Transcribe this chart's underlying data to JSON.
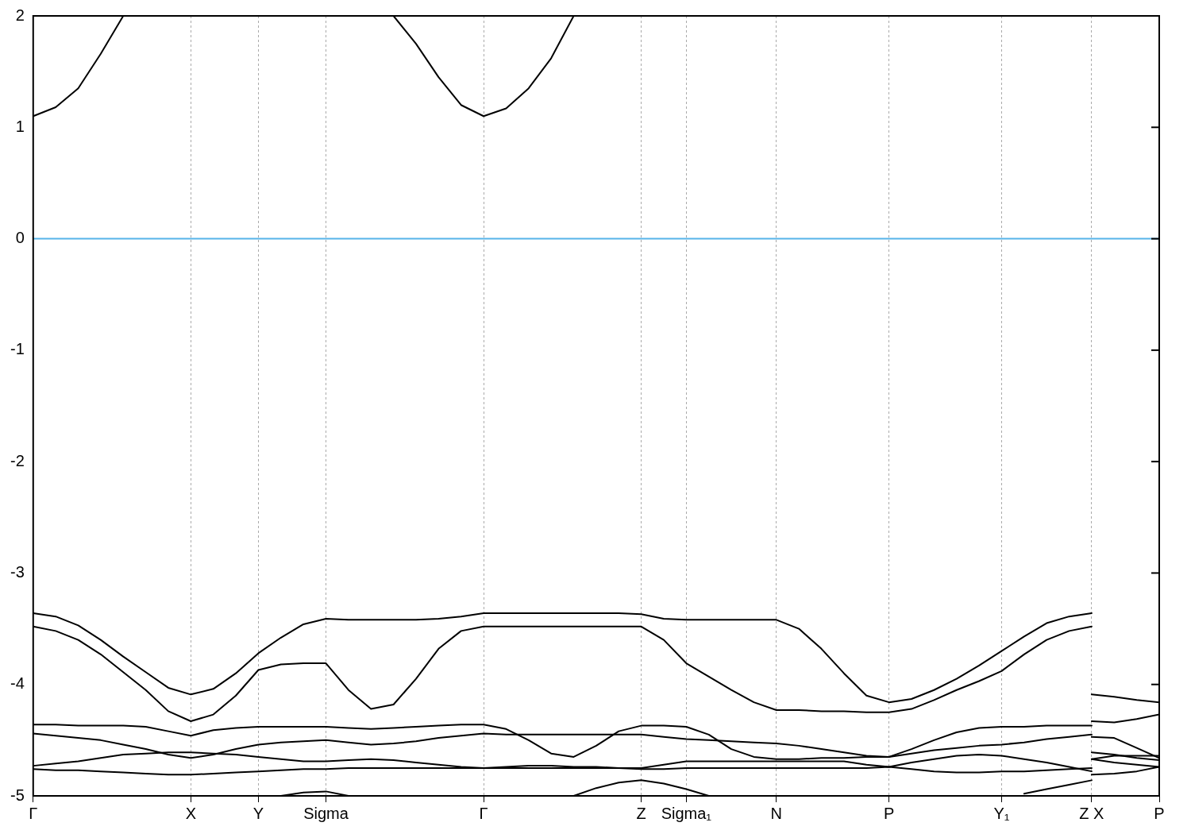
{
  "chart_data": {
    "type": "line",
    "marker": "none",
    "legend": false,
    "grid": "x",
    "categories": [
      "Γ",
      null,
      null,
      null,
      null,
      null,
      null,
      "X",
      null,
      null,
      "Y",
      null,
      null,
      "Sigma",
      null,
      null,
      null,
      null,
      null,
      null,
      "Γ",
      null,
      null,
      null,
      null,
      null,
      null,
      "Z",
      null,
      "Sigma₁",
      null,
      null,
      null,
      "N",
      null,
      null,
      null,
      null,
      "P",
      null,
      null,
      null,
      null,
      "Y₁",
      null,
      null,
      null,
      "Z X",
      null,
      null,
      "P"
    ],
    "ylim": [
      -5,
      2
    ],
    "yticks": [
      -5,
      -4,
      -3,
      -2,
      -1,
      0,
      1,
      2
    ],
    "ref_lines": [
      {
        "axis": "y",
        "value": 0,
        "color": "#56b4e9"
      }
    ],
    "series": [
      {
        "color": "#000000",
        "values": [
          1.1,
          1.18,
          1.35,
          1.66,
          2.0,
          null,
          null,
          null,
          null,
          null,
          null,
          null,
          null,
          null,
          null,
          null,
          null,
          null,
          null,
          null,
          null,
          null,
          null,
          null,
          null,
          null,
          null,
          null,
          null,
          null,
          null,
          null,
          null,
          null,
          null,
          null,
          null,
          null,
          null,
          null,
          null,
          null,
          null,
          null,
          null,
          null,
          null,
          null,
          null,
          null,
          null
        ]
      },
      {
        "color": "#000000",
        "values": [
          null,
          null,
          null,
          null,
          null,
          null,
          null,
          null,
          null,
          null,
          null,
          null,
          null,
          null,
          null,
          null,
          2.0,
          1.75,
          1.45,
          1.2,
          1.1,
          1.17,
          1.35,
          1.62,
          2.0,
          null,
          null,
          null,
          null,
          null,
          null,
          null,
          null,
          null,
          null,
          null,
          null,
          null,
          null,
          null,
          null,
          null,
          null,
          null,
          null,
          null,
          null,
          null,
          null,
          null,
          null
        ]
      },
      {
        "color": "#000000",
        "values": [
          -3.36,
          -3.39,
          -3.47,
          -3.6,
          -3.75,
          -3.89,
          -4.03,
          -4.09,
          -4.04,
          -3.9,
          -3.72,
          -3.58,
          -3.46,
          -3.41,
          -3.42,
          -3.42,
          -3.42,
          -3.42,
          -3.41,
          -3.39,
          -3.36,
          -3.36,
          -3.36,
          -3.36,
          -3.36,
          -3.36,
          -3.36,
          -3.37,
          -3.41,
          -3.42,
          -3.42,
          -3.42,
          -3.42,
          -3.42,
          -3.5,
          -3.68,
          -3.9,
          -4.1,
          -4.16,
          -4.13,
          -4.05,
          -3.95,
          -3.83,
          -3.7,
          -3.57,
          -3.45,
          -3.39,
          -3.36,
          null,
          null,
          null
        ]
      },
      {
        "color": "#000000",
        "values": [
          null,
          null,
          null,
          null,
          null,
          null,
          null,
          null,
          null,
          null,
          null,
          null,
          null,
          null,
          null,
          null,
          null,
          null,
          null,
          null,
          null,
          null,
          null,
          null,
          null,
          null,
          null,
          null,
          null,
          null,
          null,
          null,
          null,
          null,
          null,
          null,
          null,
          null,
          null,
          null,
          null,
          null,
          null,
          null,
          null,
          null,
          null,
          -4.09,
          -4.11,
          -4.14,
          -4.16
        ]
      },
      {
        "color": "#000000",
        "values": [
          -3.48,
          -3.52,
          -3.6,
          -3.73,
          -3.89,
          -4.05,
          -4.24,
          -4.33,
          -4.27,
          -4.1,
          -3.87,
          -3.82,
          -3.81,
          -3.81,
          -4.05,
          -4.22,
          -4.18,
          -3.95,
          -3.68,
          -3.52,
          -3.48,
          -3.48,
          -3.48,
          -3.48,
          -3.48,
          -3.48,
          -3.48,
          -3.48,
          -3.6,
          -3.81,
          -3.93,
          -4.05,
          -4.16,
          -4.23,
          -4.23,
          -4.24,
          -4.24,
          -4.25,
          -4.25,
          -4.22,
          -4.14,
          -4.05,
          -3.97,
          -3.88,
          -3.73,
          -3.6,
          -3.52,
          -3.48,
          null,
          null,
          null
        ]
      },
      {
        "color": "#000000",
        "values": [
          null,
          null,
          null,
          null,
          null,
          null,
          null,
          null,
          null,
          null,
          null,
          null,
          null,
          null,
          null,
          null,
          null,
          null,
          null,
          null,
          null,
          null,
          null,
          null,
          null,
          null,
          null,
          null,
          null,
          null,
          null,
          null,
          null,
          null,
          null,
          null,
          null,
          null,
          null,
          null,
          null,
          null,
          null,
          null,
          null,
          null,
          null,
          -4.33,
          -4.34,
          -4.31,
          -4.27
        ]
      },
      {
        "color": "#000000",
        "values": [
          -4.36,
          -4.36,
          -4.37,
          -4.37,
          -4.37,
          -4.38,
          -4.42,
          -4.46,
          -4.41,
          -4.39,
          -4.38,
          -4.38,
          -4.38,
          -4.38,
          -4.39,
          -4.4,
          -4.39,
          -4.38,
          -4.37,
          -4.36,
          -4.36,
          -4.4,
          -4.5,
          -4.62,
          -4.65,
          -4.55,
          -4.42,
          -4.37,
          -4.37,
          -4.38,
          -4.45,
          -4.58,
          -4.65,
          -4.67,
          -4.67,
          -4.66,
          -4.66,
          -4.65,
          -4.65,
          -4.58,
          -4.5,
          -4.43,
          -4.39,
          -4.38,
          -4.38,
          -4.37,
          -4.37,
          -4.37,
          null,
          null,
          null
        ]
      },
      {
        "color": "#000000",
        "values": [
          null,
          null,
          null,
          null,
          null,
          null,
          null,
          null,
          null,
          null,
          null,
          null,
          null,
          null,
          null,
          null,
          null,
          null,
          null,
          null,
          null,
          null,
          null,
          null,
          null,
          null,
          null,
          null,
          null,
          null,
          null,
          null,
          null,
          null,
          null,
          null,
          null,
          null,
          null,
          null,
          null,
          null,
          null,
          null,
          null,
          null,
          null,
          -4.47,
          -4.48,
          -4.57,
          -4.66
        ]
      },
      {
        "color": "#000000",
        "values": [
          -4.44,
          -4.46,
          -4.48,
          -4.5,
          -4.54,
          -4.58,
          -4.63,
          -4.66,
          -4.63,
          -4.58,
          -4.54,
          -4.52,
          -4.51,
          -4.5,
          -4.52,
          -4.54,
          -4.53,
          -4.51,
          -4.48,
          -4.46,
          -4.44,
          -4.45,
          -4.45,
          -4.45,
          -4.45,
          -4.45,
          -4.45,
          -4.45,
          -4.47,
          -4.49,
          -4.5,
          -4.51,
          -4.52,
          -4.53,
          -4.55,
          -4.58,
          -4.61,
          -4.64,
          -4.65,
          -4.62,
          -4.59,
          -4.57,
          -4.55,
          -4.54,
          -4.52,
          -4.49,
          -4.47,
          -4.45,
          null,
          null,
          null
        ]
      },
      {
        "color": "#000000",
        "values": [
          null,
          null,
          null,
          null,
          null,
          null,
          null,
          null,
          null,
          null,
          null,
          null,
          null,
          null,
          null,
          null,
          null,
          null,
          null,
          null,
          null,
          null,
          null,
          null,
          null,
          null,
          null,
          null,
          null,
          null,
          null,
          null,
          null,
          null,
          null,
          null,
          null,
          null,
          null,
          null,
          null,
          null,
          null,
          null,
          null,
          null,
          null,
          -4.61,
          -4.63,
          -4.66,
          -4.68
        ]
      },
      {
        "color": "#000000",
        "values": [
          -4.73,
          -4.71,
          -4.69,
          -4.66,
          -4.63,
          -4.62,
          -4.61,
          -4.61,
          -4.62,
          -4.63,
          -4.65,
          -4.67,
          -4.69,
          -4.69,
          -4.68,
          -4.67,
          -4.68,
          -4.7,
          -4.72,
          -4.74,
          -4.75,
          -4.74,
          -4.73,
          -4.73,
          -4.74,
          -4.74,
          -4.75,
          -4.75,
          -4.72,
          -4.69,
          -4.69,
          -4.69,
          -4.69,
          -4.69,
          -4.69,
          -4.69,
          -4.69,
          -4.72,
          -4.74,
          -4.7,
          -4.67,
          -4.64,
          -4.63,
          -4.64,
          -4.67,
          -4.7,
          -4.74,
          -4.78,
          null,
          null,
          null
        ]
      },
      {
        "color": "#000000",
        "values": [
          null,
          null,
          null,
          null,
          null,
          null,
          null,
          null,
          null,
          null,
          null,
          null,
          null,
          null,
          null,
          null,
          null,
          null,
          null,
          null,
          null,
          null,
          null,
          null,
          null,
          null,
          null,
          null,
          null,
          null,
          null,
          null,
          null,
          null,
          null,
          null,
          null,
          null,
          null,
          null,
          null,
          null,
          null,
          null,
          null,
          null,
          null,
          -4.67,
          -4.64,
          -4.64,
          -4.64
        ]
      },
      {
        "color": "#000000",
        "values": [
          -4.76,
          -4.77,
          -4.77,
          -4.78,
          -4.79,
          -4.8,
          -4.81,
          -4.81,
          -4.8,
          -4.79,
          -4.78,
          -4.77,
          -4.76,
          -4.76,
          -4.75,
          -4.75,
          -4.75,
          -4.75,
          -4.75,
          -4.75,
          -4.75,
          -4.75,
          -4.75,
          -4.75,
          -4.75,
          -4.75,
          -4.75,
          -4.76,
          -4.76,
          -4.75,
          -4.75,
          -4.75,
          -4.75,
          -4.75,
          -4.75,
          -4.75,
          -4.75,
          -4.75,
          -4.74,
          -4.76,
          -4.78,
          -4.79,
          -4.79,
          -4.78,
          -4.78,
          -4.77,
          -4.76,
          -4.75,
          null,
          null,
          null
        ]
      },
      {
        "color": "#000000",
        "values": [
          null,
          null,
          null,
          null,
          null,
          null,
          null,
          null,
          null,
          null,
          null,
          null,
          null,
          null,
          null,
          null,
          null,
          null,
          null,
          null,
          null,
          null,
          null,
          null,
          null,
          null,
          null,
          null,
          null,
          null,
          null,
          null,
          null,
          null,
          null,
          null,
          null,
          null,
          null,
          null,
          null,
          null,
          null,
          null,
          null,
          null,
          null,
          -4.67,
          -4.7,
          -4.72,
          -4.74
        ]
      },
      {
        "color": "#000000",
        "values": [
          null,
          null,
          null,
          null,
          null,
          null,
          null,
          null,
          null,
          null,
          null,
          -5.0,
          -4.97,
          -4.96,
          -5.0,
          null,
          null,
          null,
          null,
          null,
          null,
          null,
          null,
          null,
          null,
          null,
          null,
          null,
          null,
          null,
          null,
          null,
          null,
          null,
          null,
          null,
          null,
          null,
          null,
          null,
          null,
          null,
          null,
          null,
          null,
          null,
          null,
          null,
          null,
          null,
          null
        ]
      },
      {
        "color": "#000000",
        "values": [
          null,
          null,
          null,
          null,
          null,
          null,
          null,
          null,
          null,
          null,
          null,
          null,
          null,
          null,
          null,
          null,
          null,
          null,
          null,
          null,
          null,
          null,
          null,
          null,
          -5.0,
          -4.93,
          -4.88,
          -4.86,
          -4.89,
          -4.94,
          -5.0,
          null,
          null,
          null,
          null,
          null,
          null,
          null,
          null,
          null,
          null,
          null,
          null,
          null,
          null,
          null,
          null,
          null,
          null,
          null,
          null
        ]
      },
      {
        "color": "#000000",
        "values": [
          null,
          null,
          null,
          null,
          null,
          null,
          null,
          null,
          null,
          null,
          null,
          null,
          null,
          null,
          null,
          null,
          null,
          null,
          null,
          null,
          null,
          null,
          null,
          null,
          null,
          null,
          null,
          null,
          null,
          null,
          null,
          null,
          null,
          null,
          null,
          null,
          null,
          null,
          null,
          null,
          null,
          null,
          null,
          null,
          -4.98,
          -4.94,
          -4.9,
          -4.86,
          null,
          null,
          null
        ]
      },
      {
        "color": "#000000",
        "values": [
          null,
          null,
          null,
          null,
          null,
          null,
          null,
          null,
          null,
          null,
          null,
          null,
          null,
          null,
          null,
          null,
          null,
          null,
          null,
          null,
          null,
          null,
          null,
          null,
          null,
          null,
          null,
          null,
          null,
          null,
          null,
          null,
          null,
          null,
          null,
          null,
          null,
          null,
          null,
          null,
          null,
          null,
          null,
          null,
          null,
          null,
          null,
          -4.81,
          -4.8,
          -4.78,
          -4.74
        ]
      }
    ]
  }
}
